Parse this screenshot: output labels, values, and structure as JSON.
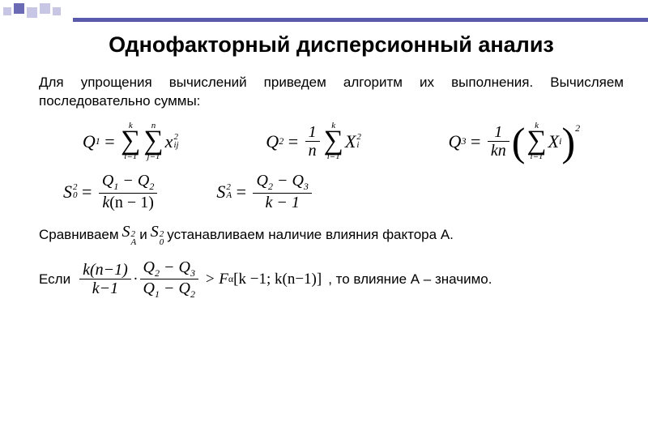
{
  "title": "Однофакторный дисперсионный анализ",
  "intro": "Для упрощения вычислений приведем алгоритм их выполнения. Вычисляем последовательно суммы:",
  "decor": {
    "square_colors": [
      "#c7c7e5",
      "#6b6bb5"
    ],
    "stripe_color": "#5a5aad"
  },
  "eq": {
    "Q1_lhs": "Q",
    "Q1_sub": "1",
    "sum_i_top": "k",
    "sum_i_bot": "i=1",
    "sum_j_top": "n",
    "sum_j_bot": "j=1",
    "x": "x",
    "ij": "ij",
    "sq": "2",
    "Q2_lhs": "Q",
    "Q2_sub": "2",
    "frac_1": "1",
    "frac_n": "n",
    "X": "X",
    "i": "i",
    "Q3_lhs": "Q",
    "Q3_sub": "3",
    "frac_kn": "kn",
    "S0_lhs": "S",
    "S0_sub": "0",
    "S0_sup": "2",
    "S0_num": "Q₁ − Q₂",
    "S0_den_k": "k",
    "S0_den_paren": "(n − 1)",
    "SA_lhs": "S",
    "SA_sub": "A",
    "SA_sup": "2",
    "SA_num": "Q₂ − Q₃",
    "SA_den": "k − 1"
  },
  "line1": {
    "pre": "Сравниваем",
    "mid": "и",
    "post": "устанавливаем наличие влияния фактора А."
  },
  "line2": {
    "pre": "Если",
    "f_num_l": "k(n−1)",
    "f_den_l": "k−1",
    "f_num_r": "Q₂ − Q₃",
    "f_den_r": "Q₁ − Q₂",
    "gt": ">",
    "Falpha": "F",
    "alpha": "α",
    "brack": "[k −1; k(n−1)]",
    "post": ", то влияние А – значимо."
  },
  "styles": {
    "body_font_size": 17,
    "title_font_size": 27,
    "eq_font_size": 22,
    "text_color": "#000000",
    "background": "#ffffff"
  }
}
